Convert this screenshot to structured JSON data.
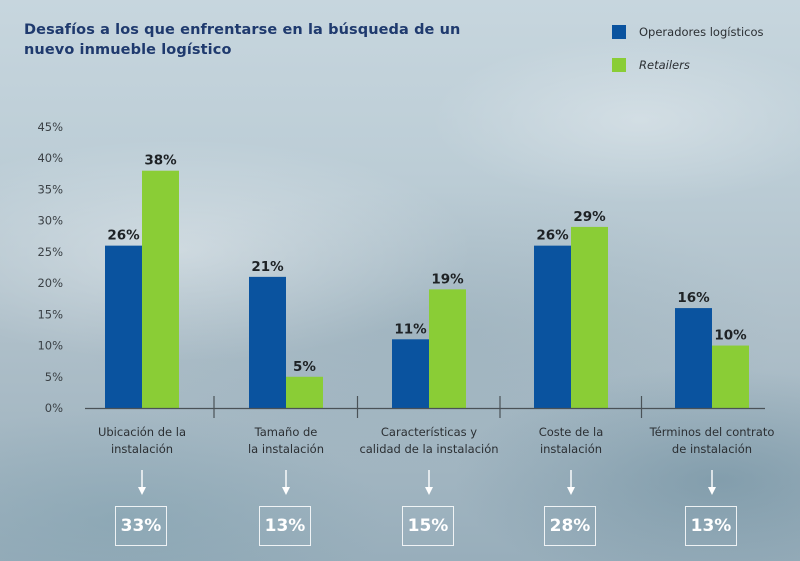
{
  "chart_data": {
    "type": "bar",
    "title": "Desafíos a los que enfrentarse en la búsqueda de un nuevo inmueble logístico",
    "categories": [
      [
        "Ubicación de la",
        "instalación"
      ],
      [
        "Tamaño de",
        "la instalación"
      ],
      [
        "Características y",
        "calidad de la instalación"
      ],
      [
        "Coste de la",
        "instalación"
      ],
      [
        "Términos del contrato",
        "de instalación"
      ]
    ],
    "series": [
      {
        "name": "Operadores logísticos",
        "color": "#0a539f",
        "values": [
          26,
          21,
          11,
          26,
          16
        ],
        "labels": [
          "26%",
          "21%",
          "11%",
          "26%",
          "16%"
        ]
      },
      {
        "name": "Retailers",
        "color": "#8acd36",
        "values": [
          38,
          5,
          19,
          29,
          10
        ],
        "labels": [
          "38%",
          "5%",
          "19%",
          "29%",
          "10%"
        ]
      }
    ],
    "totals": [
      "33%",
      "13%",
      "15%",
      "28%",
      "13%"
    ],
    "ylim": [
      0,
      45
    ],
    "yticks": [
      "0%",
      "5%",
      "10%",
      "15%",
      "20%",
      "25%",
      "30%",
      "35%",
      "40%",
      "45%"
    ],
    "ytick_values": [
      0,
      5,
      10,
      15,
      20,
      25,
      30,
      35,
      40,
      45
    ],
    "xlabel": "",
    "ylabel": "",
    "grid": false,
    "legend": "top-right"
  },
  "header": {
    "title_line1": "Desafíos a los que enfrentarse en la búsqueda de un",
    "title_line2": "nuevo inmueble logístico"
  },
  "legend": {
    "items": [
      {
        "label": "Operadores logísticos",
        "color": "#0a539f",
        "italic": false
      },
      {
        "label": "Retailers",
        "color": "#8acd36",
        "italic": true
      }
    ]
  }
}
